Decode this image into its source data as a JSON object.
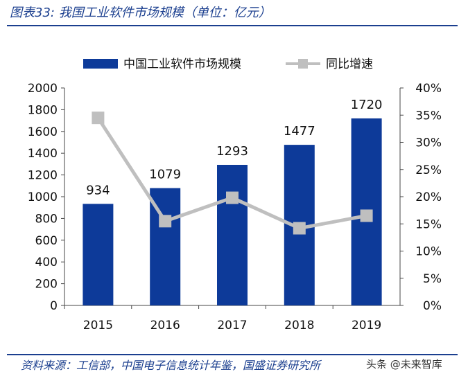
{
  "figure_title": "图表33: 我国工业软件市场规模（单位：亿元）",
  "source_note": "资料来源：工信部，中国电子信息统计年鉴，国盛证券研究所",
  "watermark": "头条 @未来智库",
  "colors": {
    "bar": "#0d3a99",
    "line": "#bfbfbf",
    "title": "#1b3f8f"
  },
  "chart_data": {
    "type": "bar",
    "categories": [
      "2015",
      "2016",
      "2017",
      "2018",
      "2019"
    ],
    "series": [
      {
        "name": "中国工业软件市场规模",
        "kind": "bar",
        "axis": "left",
        "values": [
          934,
          1079,
          1293,
          1477,
          1720
        ],
        "labels": [
          "934",
          "1079",
          "1293",
          "1477",
          "1720"
        ]
      },
      {
        "name": "同比增速",
        "kind": "line",
        "axis": "right",
        "values": [
          34.5,
          15.5,
          19.8,
          14.2,
          16.5
        ]
      }
    ],
    "y_left": {
      "min": 0,
      "max": 2000,
      "step": 200,
      "tick_labels": [
        "0",
        "200",
        "400",
        "600",
        "800",
        "1000",
        "1200",
        "1400",
        "1600",
        "1800",
        "2000"
      ]
    },
    "y_right": {
      "min": 0,
      "max": 40,
      "step": 5,
      "tick_labels": [
        "0%",
        "5%",
        "10%",
        "15%",
        "20%",
        "25%",
        "30%",
        "35%",
        "40%"
      ]
    },
    "legend": "top",
    "grid": false
  }
}
